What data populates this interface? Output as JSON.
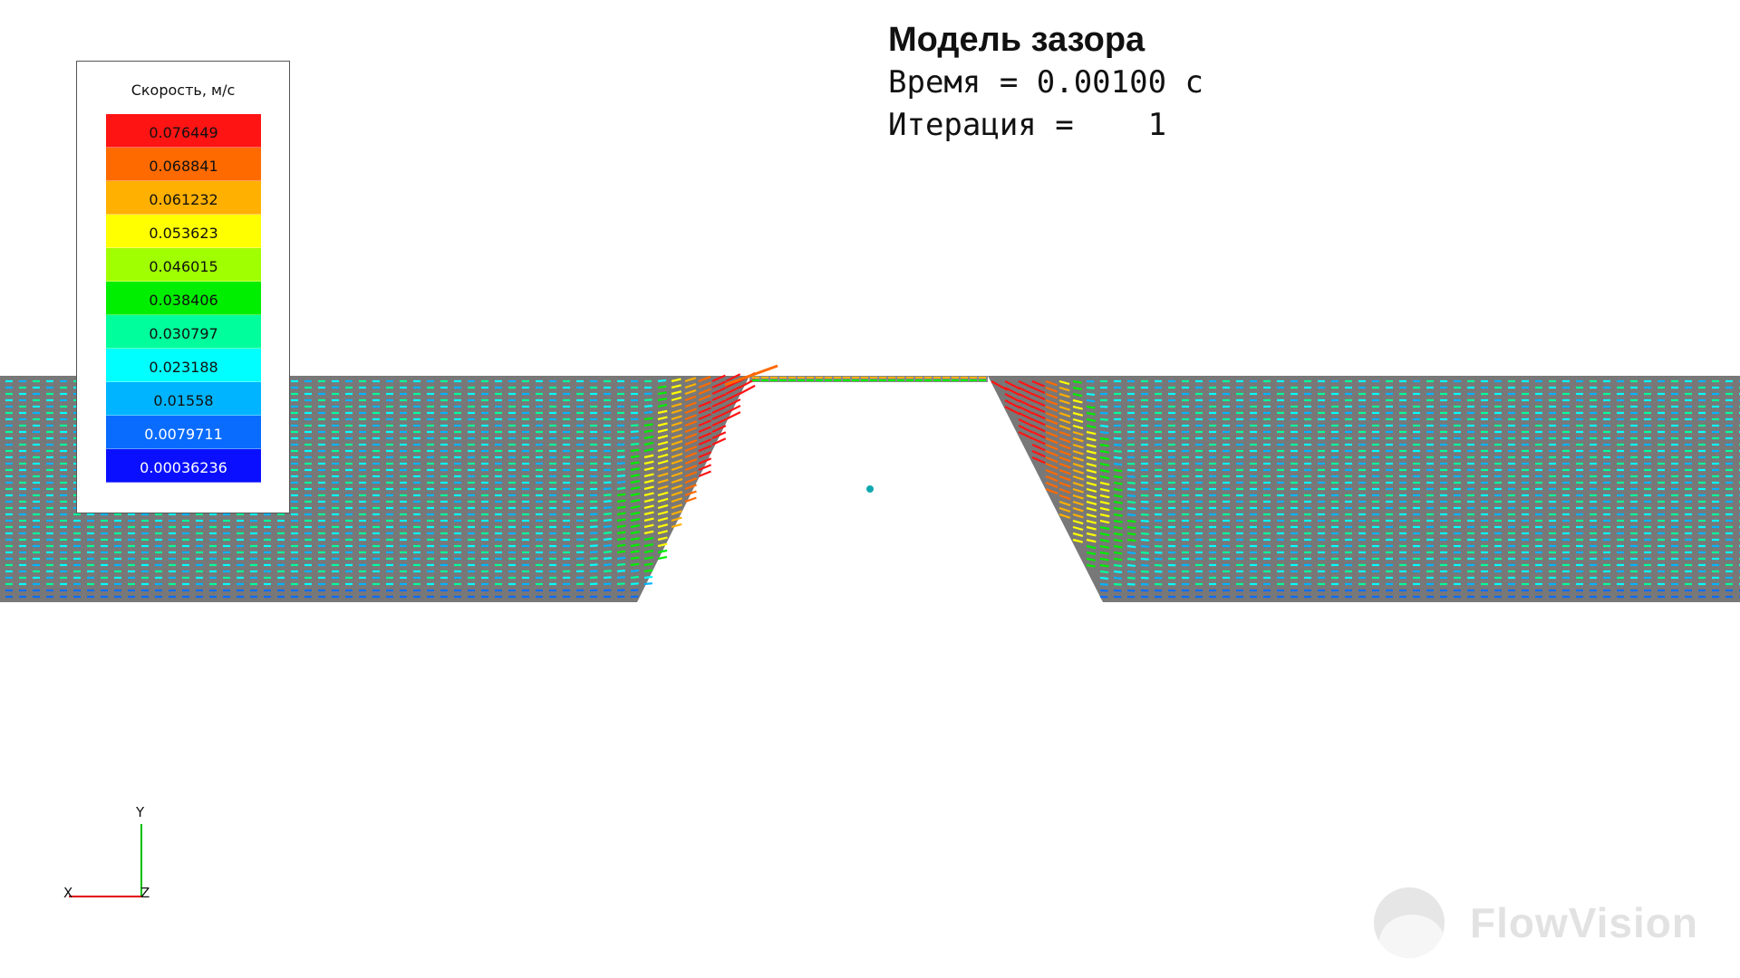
{
  "title": {
    "main": "Модель зазора",
    "time_line": "Время = 0.00100 с",
    "iteration_line": "Итерация =    1"
  },
  "legend": {
    "title": "Скорость, м/с",
    "levels": [
      {
        "value": "0.076449",
        "color": "#ff1414"
      },
      {
        "value": "0.068841",
        "color": "#ff6a00"
      },
      {
        "value": "0.061232",
        "color": "#ffb000"
      },
      {
        "value": "0.053623",
        "color": "#ffff00"
      },
      {
        "value": "0.046015",
        "color": "#a0ff00"
      },
      {
        "value": "0.038406",
        "color": "#00ee00"
      },
      {
        "value": "0.030797",
        "color": "#00ff9c"
      },
      {
        "value": "0.023188",
        "color": "#00ffff"
      },
      {
        "value": "0.01558",
        "color": "#00b4ff"
      },
      {
        "value": "0.0079711",
        "color": "#0a6cff"
      },
      {
        "value": "0.00036236",
        "color": "#0a10ff"
      }
    ]
  },
  "axes": {
    "y_label": "Y",
    "x_label": "X",
    "z_label": "Z",
    "x_color": "#e00000",
    "y_color": "#00c000"
  },
  "watermark": {
    "text": "FlowVision"
  },
  "colors": {
    "domain_gray": "#787878",
    "background": "#ffffff"
  }
}
